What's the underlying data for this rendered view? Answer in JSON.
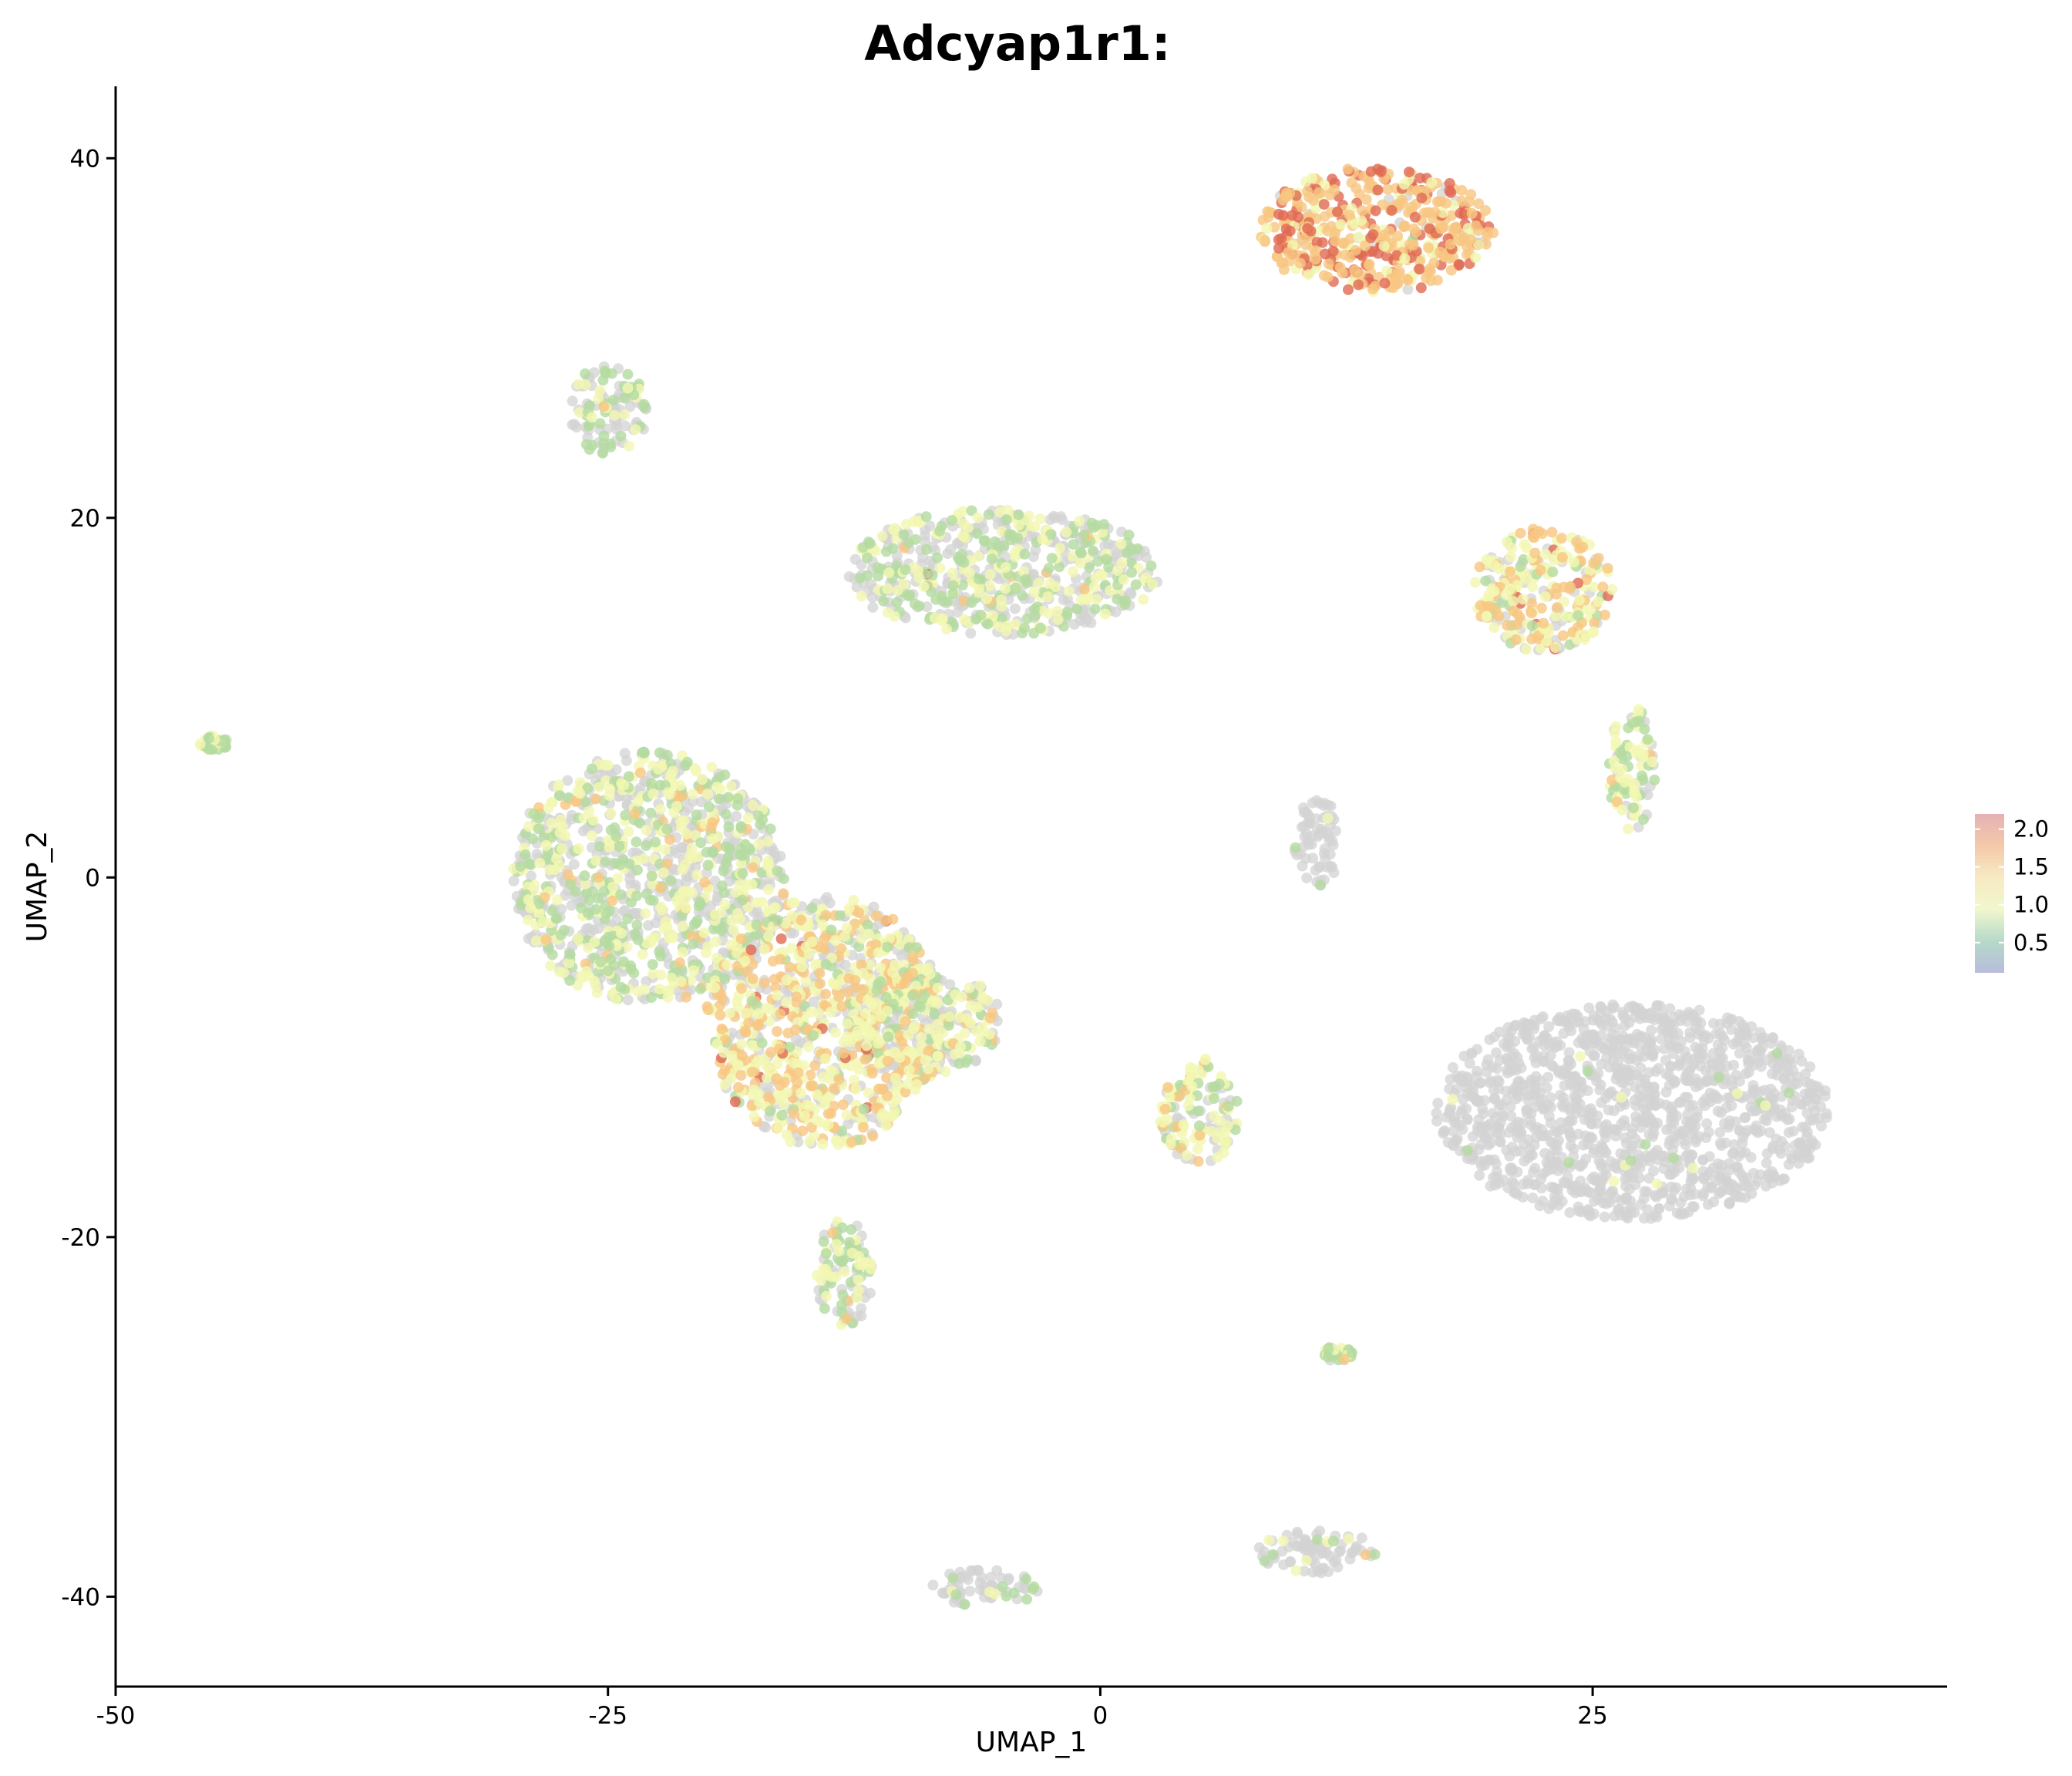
{
  "chart_data": {
    "type": "scatter",
    "title": "Adcyap1r1:",
    "xlabel": "UMAP_1",
    "ylabel": "UMAP_2",
    "xlim": [
      -50,
      43
    ],
    "ylim": [
      -45,
      44
    ],
    "x_ticks": [
      -50,
      -25,
      0,
      25
    ],
    "x_tick_labels": [
      "-50",
      "-25",
      "0",
      "25"
    ],
    "y_ticks": [
      -40,
      -20,
      0,
      20,
      40
    ],
    "y_tick_labels": [
      "-40",
      "-20",
      "0",
      "20",
      "40"
    ],
    "grid": false,
    "legend_placement": "right",
    "color_scale": {
      "min": 0.1,
      "max": 2.2,
      "ticks": [
        0.5,
        1.0,
        1.5,
        2.0
      ],
      "tick_labels": [
        "0.5",
        "1.0",
        "1.5",
        "2.0"
      ],
      "stops": [
        "#abb0d6",
        "#a9d3bf",
        "#eef6c4",
        "#f6e6b9",
        "#f2c09a",
        "#e0a3a6"
      ]
    },
    "colors": {
      "zero_expression": "#d3d3d3",
      "low": "#b4dba0",
      "mid": "#f2f7b2",
      "high": "#f8c782",
      "top": "#e06a52"
    },
    "clusters": [
      {
        "cx": 14,
        "cy": 36,
        "rx": 6,
        "ry": 3.5,
        "expr_frac": 0.95,
        "level": 1.5
      },
      {
        "cx": -25,
        "cy": 26,
        "rx": 2,
        "ry": 2.5,
        "expr_frac": 0.45,
        "level": 0.4
      },
      {
        "cx": -5,
        "cy": 17,
        "rx": 8,
        "ry": 3.5,
        "expr_frac": 0.5,
        "level": 0.5
      },
      {
        "cx": 22.5,
        "cy": 16,
        "rx": 3.5,
        "ry": 3.5,
        "expr_frac": 0.8,
        "level": 1.0
      },
      {
        "cx": 27,
        "cy": 6,
        "rx": 1.2,
        "ry": 3.5,
        "expr_frac": 0.7,
        "level": 0.6
      },
      {
        "cx": -45,
        "cy": 7.5,
        "rx": 0.8,
        "ry": 0.4,
        "expr_frac": 0.9,
        "level": 0.4
      },
      {
        "cx": -23,
        "cy": 0,
        "rx": 7,
        "ry": 7,
        "expr_frac": 0.55,
        "level": 0.6
      },
      {
        "cx": -14,
        "cy": -8,
        "rx": 6,
        "ry": 7,
        "expr_frac": 0.7,
        "level": 1.0
      },
      {
        "cx": -9,
        "cy": -8,
        "rx": 4,
        "ry": 3,
        "expr_frac": 0.6,
        "level": 0.8
      },
      {
        "cx": -13,
        "cy": -22,
        "rx": 1.5,
        "ry": 3,
        "expr_frac": 0.6,
        "level": 0.5
      },
      {
        "cx": 11,
        "cy": 2,
        "rx": 1.2,
        "ry": 2.5,
        "expr_frac": 0.05,
        "level": 0.3
      },
      {
        "cx": 5,
        "cy": -13,
        "rx": 2,
        "ry": 3,
        "expr_frac": 0.7,
        "level": 0.7
      },
      {
        "cx": 27,
        "cy": -13,
        "rx": 10,
        "ry": 6,
        "expr_frac": 0.01,
        "level": 0.5
      },
      {
        "cx": 12,
        "cy": -26.5,
        "rx": 0.8,
        "ry": 0.4,
        "expr_frac": 0.5,
        "level": 0.4
      },
      {
        "cx": 11,
        "cy": -37.5,
        "rx": 3,
        "ry": 1.2,
        "expr_frac": 0.1,
        "level": 0.5
      },
      {
        "cx": -6,
        "cy": -39.5,
        "rx": 3,
        "ry": 1.0,
        "expr_frac": 0.2,
        "level": 0.4
      }
    ]
  }
}
